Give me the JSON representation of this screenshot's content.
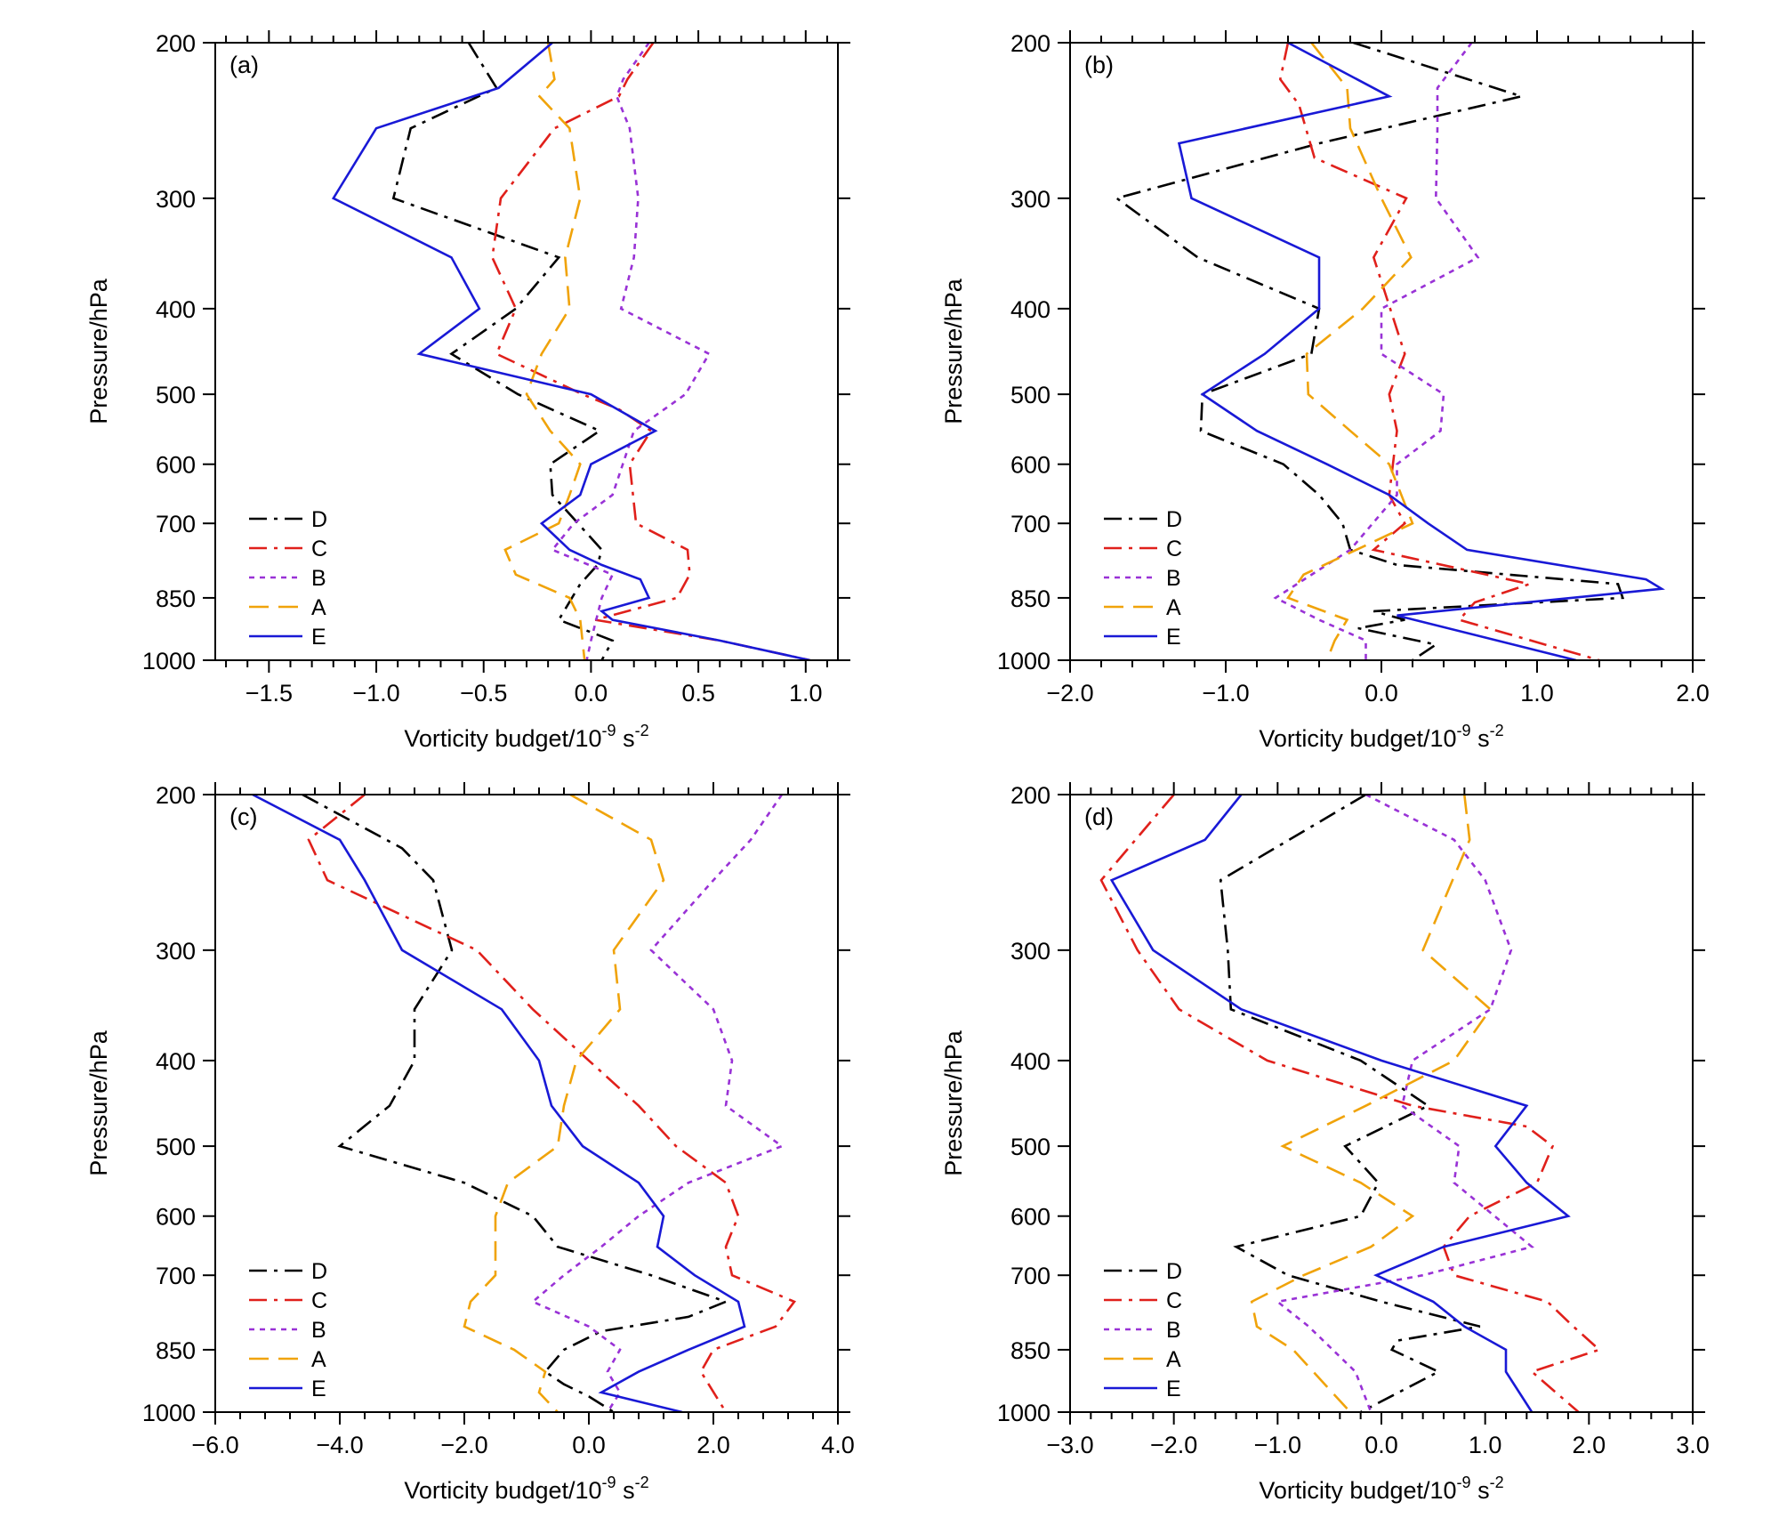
{
  "chart_data": [
    {
      "panel": "(a)",
      "type": "line",
      "xlabel": "Vorticity budget/10",
      "xlabel_exp": "-9",
      "xlabel_unit": " s",
      "xlabel_unit_exp": "-2",
      "ylabel": "Pressure/hPa",
      "xlim": [
        -1.75,
        1.15
      ],
      "ylim": [
        200,
        1000
      ],
      "xticks": [
        -1.5,
        -1.0,
        -0.5,
        0.0,
        0.5,
        1.0
      ],
      "xtick_labels": [
        "−1.5",
        "−1.0",
        "−0.5",
        "0.0",
        "0.5",
        "1.0"
      ],
      "yticks": [
        200,
        300,
        400,
        500,
        600,
        700,
        850,
        1000
      ],
      "ytick_labels": [
        "200",
        "300",
        "400",
        "500",
        "600",
        "700",
        "850",
        "1000"
      ],
      "series": [
        {
          "name": "D",
          "color": "#000000",
          "style": "dashdot",
          "x": [
            -0.57,
            -0.44,
            -0.84,
            -0.92,
            -0.15,
            -0.35,
            -0.65,
            -0.34,
            0.04,
            -0.19,
            -0.18,
            0.05,
            0.03,
            -0.05,
            -0.15,
            0.1,
            0.05
          ],
          "p": [
            200,
            225,
            250,
            300,
            350,
            400,
            450,
            500,
            550,
            600,
            650,
            750,
            780,
            820,
            900,
            950,
            1000
          ]
        },
        {
          "name": "C",
          "color": "#e0201b",
          "style": "dashdot",
          "x": [
            0.29,
            0.17,
            0.13,
            -0.17,
            -0.42,
            -0.46,
            -0.35,
            -0.44,
            -0.04,
            0.13,
            0.28,
            0.18,
            0.21,
            0.45,
            0.46,
            0.4,
            0.02,
            0.6,
            1.02
          ],
          "p": [
            200,
            220,
            230,
            250,
            300,
            350,
            400,
            450,
            500,
            520,
            550,
            600,
            700,
            750,
            800,
            850,
            900,
            950,
            1000
          ]
        },
        {
          "name": "B",
          "color": "#9932d6",
          "style": "dotted",
          "x": [
            0.27,
            0.15,
            0.12,
            0.18,
            0.22,
            0.2,
            0.14,
            0.55,
            0.44,
            0.2,
            0.1,
            -0.08,
            -0.18,
            0.1,
            0.05,
            0.0,
            -0.02
          ],
          "p": [
            200,
            220,
            230,
            250,
            300,
            350,
            400,
            450,
            500,
            550,
            650,
            700,
            750,
            800,
            850,
            950,
            1000
          ]
        },
        {
          "name": "A",
          "color": "#f0a30a",
          "style": "dashed",
          "x": [
            -0.2,
            -0.17,
            -0.24,
            -0.1,
            -0.05,
            -0.12,
            -0.1,
            -0.23,
            -0.3,
            -0.19,
            -0.05,
            -0.1,
            -0.15,
            -0.4,
            -0.35,
            -0.1,
            -0.05,
            -0.03
          ],
          "p": [
            200,
            220,
            230,
            250,
            300,
            350,
            400,
            450,
            500,
            550,
            600,
            650,
            700,
            750,
            800,
            850,
            900,
            1000
          ]
        },
        {
          "name": "E",
          "color": "#1919d6",
          "style": "solid",
          "x": [
            -0.18,
            -0.43,
            -1.0,
            -1.2,
            -0.65,
            -0.52,
            -0.8,
            0.0,
            0.3,
            0.0,
            -0.05,
            -0.23,
            -0.1,
            0.05,
            0.23,
            0.27,
            0.05,
            0.1,
            0.6,
            1.02
          ],
          "p": [
            200,
            225,
            250,
            300,
            350,
            400,
            450,
            500,
            550,
            600,
            650,
            700,
            750,
            780,
            810,
            850,
            880,
            900,
            950,
            1000
          ]
        }
      ]
    },
    {
      "panel": "(b)",
      "type": "line",
      "xlabel": "Vorticity budget/10",
      "xlabel_exp": "-9",
      "xlabel_unit": " s",
      "xlabel_unit_exp": "-2",
      "ylabel": "Pressure/hPa",
      "xlim": [
        -2.0,
        2.0
      ],
      "ylim": [
        200,
        1000
      ],
      "xticks": [
        -2.0,
        -1.0,
        0.0,
        1.0,
        2.0
      ],
      "xtick_labels": [
        "−2.0",
        "−1.0",
        "0.0",
        "1.0",
        "2.0"
      ],
      "yticks": [
        200,
        300,
        400,
        500,
        600,
        700,
        850,
        1000
      ],
      "ytick_labels": [
        "200",
        "300",
        "400",
        "500",
        "600",
        "700",
        "850",
        "1000"
      ],
      "series": [
        {
          "name": "D",
          "color": "#000000",
          "style": "dashdot",
          "x": [
            -0.18,
            0.9,
            -0.4,
            -1.7,
            -1.18,
            -0.4,
            -0.45,
            -1.15,
            -1.16,
            -0.63,
            -0.4,
            -0.25,
            -0.2,
            0.1,
            1.52,
            1.55,
            -0.05,
            0.15,
            -0.15,
            0.35,
            0.2
          ],
          "p": [
            200,
            230,
            260,
            300,
            350,
            400,
            450,
            500,
            550,
            600,
            650,
            700,
            750,
            780,
            820,
            850,
            880,
            900,
            920,
            960,
            1000
          ]
        },
        {
          "name": "C",
          "color": "#e0201b",
          "style": "dashdot",
          "x": [
            -0.6,
            -0.65,
            -0.53,
            -0.43,
            0.16,
            -0.05,
            0.15,
            0.05,
            0.1,
            0.05,
            0.15,
            -0.05,
            0.95,
            0.6,
            0.5,
            1.4
          ],
          "p": [
            200,
            220,
            235,
            270,
            300,
            350,
            450,
            500,
            550,
            650,
            700,
            750,
            820,
            860,
            900,
            1000
          ]
        },
        {
          "name": "B",
          "color": "#9932d6",
          "style": "dotted",
          "x": [
            0.58,
            0.36,
            0.36,
            0.35,
            0.62,
            0.0,
            0.0,
            0.4,
            0.38,
            0.1,
            0.1,
            -0.2,
            -0.68,
            -0.4,
            -0.1,
            -0.1
          ],
          "p": [
            200,
            225,
            250,
            300,
            350,
            400,
            450,
            500,
            550,
            600,
            650,
            750,
            850,
            900,
            950,
            1000
          ]
        },
        {
          "name": "A",
          "color": "#f0a30a",
          "style": "dashed",
          "x": [
            -0.45,
            -0.22,
            -0.2,
            0.0,
            0.19,
            -0.12,
            -0.48,
            -0.47,
            -0.2,
            0.05,
            0.2,
            -0.5,
            -0.6,
            -0.22,
            -0.3,
            -0.35
          ],
          "p": [
            200,
            225,
            250,
            300,
            350,
            400,
            450,
            500,
            550,
            600,
            700,
            800,
            850,
            900,
            950,
            1000
          ]
        },
        {
          "name": "E",
          "color": "#1919d6",
          "style": "solid",
          "x": [
            -0.6,
            0.05,
            -1.3,
            -1.22,
            -0.4,
            -0.4,
            -0.75,
            -1.15,
            -0.8,
            -0.35,
            0.05,
            0.3,
            0.55,
            1.7,
            1.8,
            0.1,
            1.25
          ],
          "p": [
            200,
            230,
            260,
            300,
            350,
            400,
            450,
            500,
            550,
            600,
            650,
            700,
            750,
            810,
            830,
            890,
            1000
          ]
        }
      ]
    },
    {
      "panel": "(c)",
      "type": "line",
      "xlabel": "Vorticity budget/10",
      "xlabel_exp": "-9",
      "xlabel_unit": " s",
      "xlabel_unit_exp": "-2",
      "ylabel": "Pressure/hPa",
      "xlim": [
        -6.0,
        4.0
      ],
      "ylim": [
        200,
        1000
      ],
      "xticks": [
        -6.0,
        -4.0,
        -2.0,
        0.0,
        2.0,
        4.0
      ],
      "xtick_labels": [
        "−6.0",
        "−4.0",
        "−2.0",
        "0.0",
        "2.0",
        "4.0"
      ],
      "yticks": [
        200,
        300,
        400,
        500,
        600,
        700,
        850,
        1000
      ],
      "ytick_labels": [
        "200",
        "300",
        "400",
        "500",
        "600",
        "700",
        "850",
        "1000"
      ],
      "series": [
        {
          "name": "D",
          "color": "#000000",
          "style": "dashdot",
          "x": [
            -4.6,
            -3.0,
            -2.5,
            -2.2,
            -2.8,
            -2.8,
            -3.2,
            -4.0,
            -2.0,
            -0.9,
            -0.5,
            1.0,
            2.2,
            1.6,
            0.2,
            -0.4,
            -0.7,
            -0.4,
            0.0,
            0.4
          ],
          "p": [
            200,
            230,
            250,
            300,
            350,
            400,
            450,
            500,
            550,
            600,
            650,
            700,
            750,
            780,
            810,
            850,
            900,
            930,
            960,
            1000
          ]
        },
        {
          "name": "C",
          "color": "#e0201b",
          "style": "dashdot",
          "x": [
            -3.6,
            -4.5,
            -4.2,
            -1.8,
            -0.9,
            0.0,
            0.8,
            1.4,
            2.2,
            2.4,
            2.2,
            2.3,
            3.3,
            3.0,
            2.0,
            1.8,
            2.2
          ],
          "p": [
            200,
            225,
            250,
            300,
            350,
            400,
            450,
            500,
            550,
            600,
            650,
            700,
            750,
            800,
            850,
            900,
            1000
          ]
        },
        {
          "name": "B",
          "color": "#9932d6",
          "style": "dotted",
          "x": [
            3.1,
            2.6,
            2.0,
            1.0,
            2.0,
            2.3,
            2.2,
            3.1,
            1.6,
            0.8,
            0.2,
            -0.4,
            -0.9,
            0.0,
            0.5,
            0.3,
            0.5,
            0.3
          ],
          "p": [
            200,
            225,
            250,
            300,
            350,
            400,
            450,
            500,
            550,
            600,
            650,
            700,
            750,
            800,
            850,
            900,
            950,
            1000
          ]
        },
        {
          "name": "A",
          "color": "#f0a30a",
          "style": "dashed",
          "x": [
            -0.3,
            1.0,
            1.2,
            0.4,
            0.5,
            -0.2,
            -0.4,
            -0.5,
            -1.3,
            -1.5,
            -1.5,
            -1.5,
            -1.9,
            -2.0,
            -1.2,
            -0.7,
            -0.8,
            -0.5
          ],
          "p": [
            200,
            225,
            250,
            300,
            350,
            400,
            450,
            500,
            550,
            600,
            650,
            700,
            750,
            800,
            850,
            900,
            950,
            1000
          ]
        },
        {
          "name": "E",
          "color": "#1919d6",
          "style": "solid",
          "x": [
            -5.4,
            -4.0,
            -3.6,
            -3.0,
            -1.4,
            -0.8,
            -0.6,
            -0.1,
            0.8,
            1.2,
            1.1,
            1.7,
            2.4,
            2.5,
            1.6,
            0.8,
            0.2,
            1.5
          ],
          "p": [
            200,
            225,
            250,
            300,
            350,
            400,
            450,
            500,
            550,
            600,
            650,
            700,
            750,
            800,
            850,
            900,
            950,
            1000
          ]
        }
      ]
    },
    {
      "panel": "(d)",
      "type": "line",
      "xlabel": "Vorticity budget/10",
      "xlabel_exp": "-9",
      "xlabel_unit": " s",
      "xlabel_unit_exp": "-2",
      "ylabel": "Pressure/hPa",
      "xlim": [
        -3.0,
        3.0
      ],
      "ylim": [
        200,
        1000
      ],
      "xticks": [
        -3.0,
        -2.0,
        -1.0,
        0.0,
        1.0,
        2.0,
        3.0
      ],
      "xtick_labels": [
        "−3.0",
        "−2.0",
        "−1.0",
        "0.0",
        "1.0",
        "2.0",
        "3.0"
      ],
      "yticks": [
        200,
        300,
        400,
        500,
        600,
        700,
        850,
        1000
      ],
      "ytick_labels": [
        "200",
        "300",
        "400",
        "500",
        "600",
        "700",
        "850",
        "1000"
      ],
      "series": [
        {
          "name": "D",
          "color": "#000000",
          "style": "dashdot",
          "x": [
            -0.15,
            -1.55,
            -1.48,
            -1.45,
            -0.2,
            0.45,
            -0.35,
            -0.03,
            -0.2,
            -1.4,
            -0.9,
            0.0,
            0.95,
            0.15,
            0.1,
            0.55,
            -0.2
          ],
          "p": [
            200,
            250,
            300,
            350,
            400,
            450,
            500,
            550,
            600,
            650,
            700,
            750,
            800,
            830,
            850,
            900,
            1000
          ]
        },
        {
          "name": "C",
          "color": "#e0201b",
          "style": "dashdot",
          "x": [
            -2.0,
            -2.7,
            -2.35,
            -1.95,
            -1.1,
            0.3,
            1.4,
            1.65,
            1.5,
            0.85,
            0.6,
            0.7,
            1.6,
            1.85,
            2.1,
            1.45,
            1.9
          ],
          "p": [
            200,
            250,
            300,
            350,
            400,
            450,
            475,
            500,
            550,
            600,
            650,
            700,
            750,
            800,
            850,
            900,
            1000
          ]
        },
        {
          "name": "B",
          "color": "#9932d6",
          "style": "dotted",
          "x": [
            -0.15,
            0.7,
            1.0,
            1.25,
            1.05,
            0.3,
            0.2,
            0.75,
            0.7,
            1.45,
            0.4,
            -1.0,
            -0.7,
            -0.25,
            -0.1
          ],
          "p": [
            200,
            225,
            250,
            300,
            350,
            400,
            450,
            500,
            550,
            650,
            700,
            750,
            800,
            900,
            1000
          ]
        },
        {
          "name": "A",
          "color": "#f0a30a",
          "style": "dashed",
          "x": [
            0.8,
            0.85,
            0.4,
            1.05,
            0.7,
            -0.15,
            -0.95,
            -0.2,
            0.3,
            -0.1,
            -0.75,
            -1.25,
            -1.2,
            -0.85,
            -0.3
          ],
          "p": [
            200,
            225,
            300,
            350,
            400,
            450,
            500,
            550,
            600,
            650,
            700,
            750,
            800,
            850,
            1000
          ]
        },
        {
          "name": "E",
          "color": "#1919d6",
          "style": "solid",
          "x": [
            -1.35,
            -1.7,
            -2.6,
            -2.2,
            -1.35,
            0.0,
            1.4,
            1.1,
            1.4,
            1.8,
            0.6,
            -0.05,
            0.5,
            0.8,
            1.2,
            1.2,
            1.45
          ],
          "p": [
            200,
            225,
            250,
            300,
            350,
            400,
            450,
            500,
            550,
            600,
            650,
            700,
            750,
            800,
            850,
            900,
            1000
          ]
        }
      ]
    }
  ]
}
